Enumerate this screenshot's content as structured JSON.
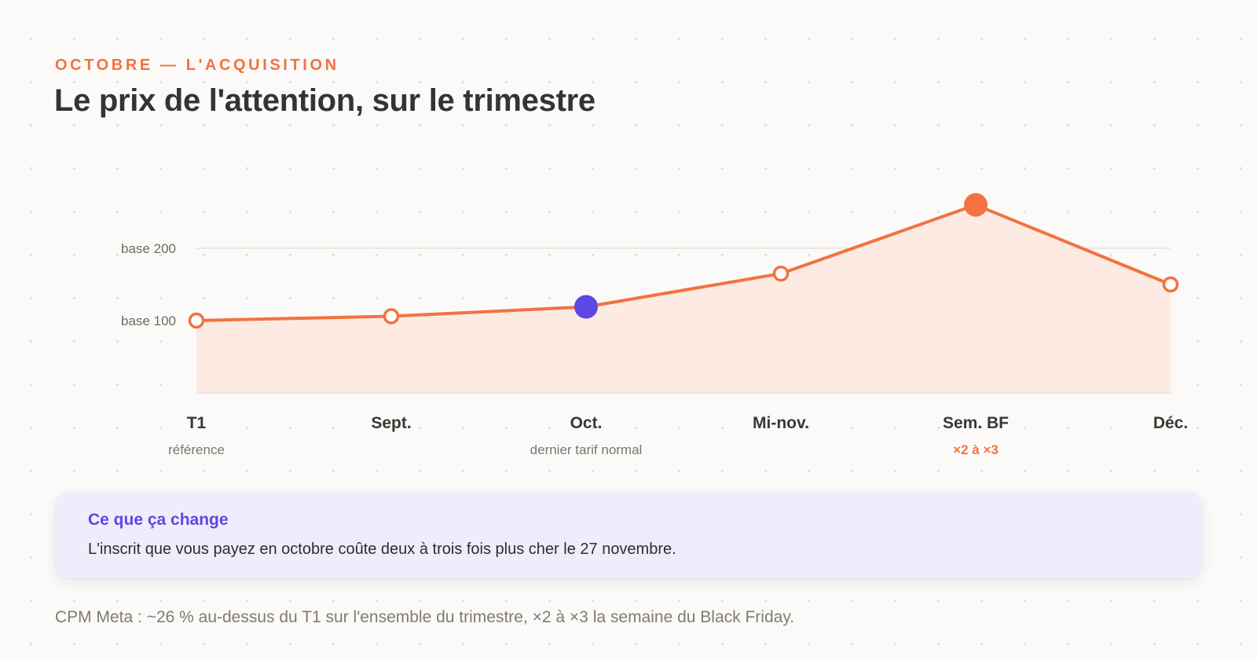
{
  "header": {
    "eyebrow": "Octobre — l'acquisition",
    "title": "Le prix de l'attention, sur le trimestre"
  },
  "chart_data": {
    "type": "area",
    "x": [
      "T1",
      "Sept.",
      "Oct.",
      "Mi-nov.",
      "Sem. BF",
      "Déc."
    ],
    "sublabels": [
      "référence",
      "",
      "dernier tarif normal",
      "",
      "×2 à ×3",
      ""
    ],
    "series": [
      {
        "values": [
          100,
          106,
          119,
          165,
          260,
          150
        ]
      }
    ],
    "y_gridlines": [
      {
        "value": 100,
        "label": "base 100"
      },
      {
        "value": 200,
        "label": "base 200"
      }
    ],
    "ylim": [
      0,
      300
    ],
    "highlight": {
      "index": 2,
      "color": "#5b48e6"
    },
    "peak": {
      "index": 4,
      "color": "#f3723f"
    },
    "line_color": "#f3723f",
    "area_color": "#fde8df",
    "sublabel_accent_index": 4,
    "grid": true,
    "legend": "none"
  },
  "callout": {
    "title": "Ce que ça change",
    "body": "L'inscrit que vous payez en octobre coûte deux à trois fois plus cher le 27 novembre."
  },
  "footnote": "CPM Meta : ~26 % au-dessus du T1 sur l'ensemble du trimestre, ×2 à ×3 la semaine du Black Friday."
}
